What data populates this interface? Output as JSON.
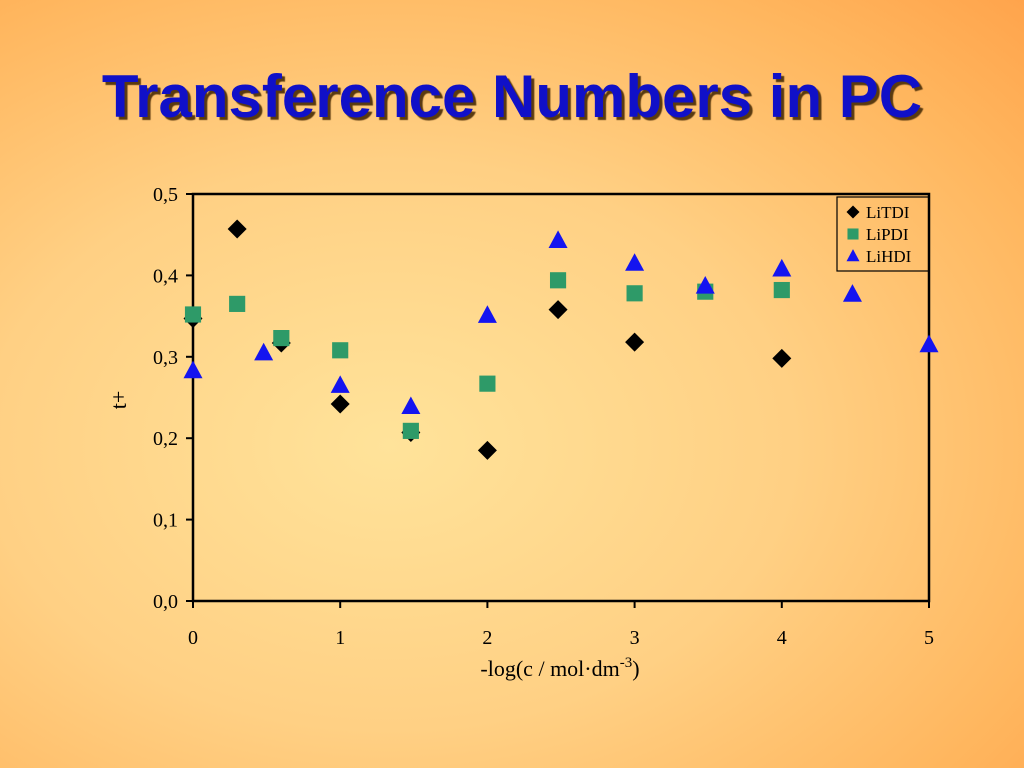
{
  "slide": {
    "title": "Transference Numbers in PC"
  },
  "chart_data": {
    "type": "scatter",
    "title": "",
    "xlabel": "-log(c / mol·dm",
    "xlabel_sup": "-3",
    "xlabel_tail": ")",
    "ylabel": "t+",
    "xlim": [
      0,
      5
    ],
    "ylim": [
      0,
      0.5
    ],
    "xticks": [
      0,
      1,
      2,
      3,
      4,
      5
    ],
    "xtick_labels": [
      "0",
      "1",
      "2",
      "3",
      "4",
      "5"
    ],
    "yticks": [
      0,
      0.1,
      0.2,
      0.3,
      0.4,
      0.5
    ],
    "ytick_labels": [
      "0,0",
      "0,1",
      "0,2",
      "0,3",
      "0,4",
      "0,5"
    ],
    "grid": false,
    "legend_position": "top-right",
    "series": [
      {
        "name": "LiTDI",
        "marker": "diamond",
        "color": "#000000",
        "points": [
          [
            0,
            0.347
          ],
          [
            0.3,
            0.457
          ],
          [
            0.6,
            0.317
          ],
          [
            1,
            0.242
          ],
          [
            1.48,
            0.207
          ],
          [
            2,
            0.185
          ],
          [
            2.48,
            0.358
          ],
          [
            3,
            0.318
          ],
          [
            4,
            0.298
          ]
        ]
      },
      {
        "name": "LiPDI",
        "marker": "square",
        "color": "#2e9a68",
        "points": [
          [
            0,
            0.352
          ],
          [
            0.3,
            0.365
          ],
          [
            0.6,
            0.323
          ],
          [
            1,
            0.308
          ],
          [
            1.48,
            0.209
          ],
          [
            2,
            0.267
          ],
          [
            2.48,
            0.394
          ],
          [
            3,
            0.378
          ],
          [
            3.48,
            0.38
          ],
          [
            4,
            0.382
          ]
        ]
      },
      {
        "name": "LiHDI",
        "marker": "triangle",
        "color": "#1414f0",
        "points": [
          [
            0,
            0.283
          ],
          [
            0.48,
            0.305
          ],
          [
            1,
            0.265
          ],
          [
            1.48,
            0.239
          ],
          [
            2,
            0.351
          ],
          [
            2.48,
            0.443
          ],
          [
            3,
            0.415
          ],
          [
            3.48,
            0.387
          ],
          [
            4,
            0.408
          ],
          [
            4.48,
            0.377
          ],
          [
            5,
            0.315
          ]
        ]
      }
    ]
  }
}
